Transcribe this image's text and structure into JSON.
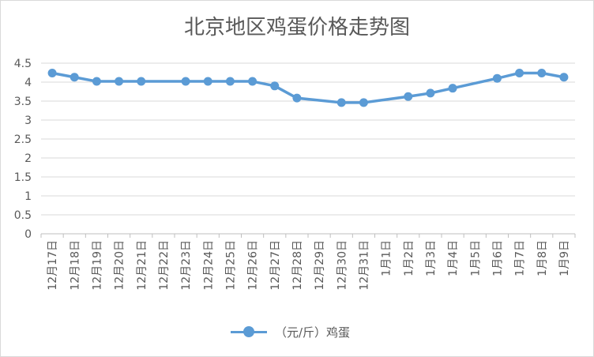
{
  "chart_data": {
    "type": "line",
    "title": "北京地区鸡蛋价格走势图",
    "xlabel": "",
    "ylabel": "",
    "ylim": [
      0,
      4.5
    ],
    "yticks": [
      "0",
      "0.5",
      "1",
      "1.5",
      "2",
      "2.5",
      "3",
      "3.5",
      "4",
      "4.5"
    ],
    "grid": true,
    "legend_position": "bottom",
    "categories": [
      "12月17日",
      "12月18日",
      "12月19日",
      "12月20日",
      "12月21日",
      "12月22日",
      "12月23日",
      "12月24日",
      "12月25日",
      "12月26日",
      "12月27日",
      "12月28日",
      "12月29日",
      "12月30日",
      "12月31日",
      "1月1日",
      "1月2日",
      "1月3日",
      "1月4日",
      "1月5日",
      "1月6日",
      "1月7日",
      "1月8日",
      "1月9日"
    ],
    "series": [
      {
        "name": "（元/斤）鸡蛋",
        "color": "#5b9bd5",
        "values": [
          4.24,
          4.13,
          4.02,
          4.02,
          4.02,
          null,
          4.02,
          4.02,
          4.02,
          4.02,
          3.9,
          3.58,
          null,
          3.46,
          3.46,
          null,
          3.62,
          3.71,
          3.84,
          null,
          4.1,
          4.24,
          4.24,
          4.13
        ]
      }
    ]
  }
}
